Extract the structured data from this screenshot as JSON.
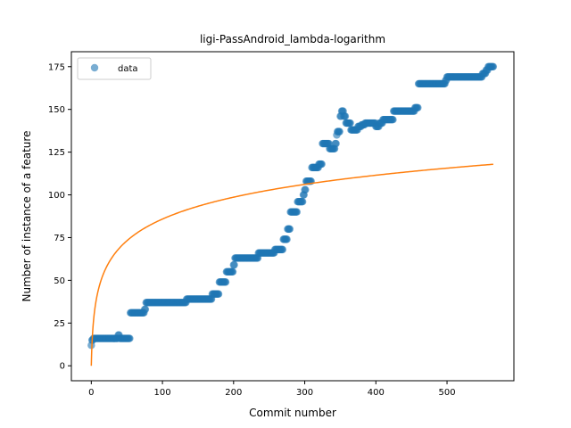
{
  "chart_data": {
    "type": "scatter",
    "title": "ligi-PassAndroid_lambda-logarithm",
    "xlabel": "Commit number",
    "ylabel": "Number of instance of a feature",
    "xlim": [
      -28,
      594
    ],
    "ylim": [
      -8.75,
      183.75
    ],
    "xticks": [
      0,
      100,
      200,
      300,
      400,
      500
    ],
    "yticks": [
      0,
      25,
      50,
      75,
      100,
      125,
      150,
      175
    ],
    "grid": false,
    "legend": {
      "placement": "top-left",
      "entries": [
        "data"
      ]
    },
    "colors": {
      "data": "#1f77b4",
      "fit": "#ff7f0e"
    },
    "series": [
      {
        "name": "data",
        "kind": "scatter",
        "steps": [
          [
            0,
            12
          ],
          [
            1,
            15
          ],
          [
            3,
            16
          ],
          [
            38,
            18
          ],
          [
            40,
            16
          ],
          [
            55,
            31
          ],
          [
            75,
            33
          ],
          [
            77,
            37
          ],
          [
            134,
            39
          ],
          [
            170,
            42
          ],
          [
            180,
            49
          ],
          [
            190,
            55
          ],
          [
            200,
            59
          ],
          [
            202,
            63
          ],
          [
            235,
            66
          ],
          [
            258,
            68
          ],
          [
            270,
            74
          ],
          [
            276,
            80
          ],
          [
            280,
            90
          ],
          [
            290,
            96
          ],
          [
            298,
            100
          ],
          [
            300,
            103
          ],
          [
            302,
            108
          ],
          [
            310,
            116
          ],
          [
            320,
            118
          ],
          [
            325,
            130
          ],
          [
            335,
            127
          ],
          [
            343,
            130
          ],
          [
            345,
            135
          ],
          [
            346,
            137
          ],
          [
            350,
            146
          ],
          [
            352,
            149
          ],
          [
            355,
            146
          ],
          [
            358,
            142
          ],
          [
            365,
            138
          ],
          [
            375,
            140
          ],
          [
            380,
            141
          ],
          [
            385,
            142
          ],
          [
            395,
            142
          ],
          [
            400,
            140
          ],
          [
            405,
            142
          ],
          [
            410,
            144
          ],
          [
            420,
            144
          ],
          [
            425,
            149
          ],
          [
            455,
            151
          ],
          [
            460,
            165
          ],
          [
            495,
            165
          ],
          [
            498,
            167
          ],
          [
            500,
            169
          ],
          [
            550,
            171
          ],
          [
            555,
            173
          ],
          [
            558,
            175
          ],
          [
            565,
            175
          ]
        ]
      },
      {
        "name": "",
        "kind": "fit-line",
        "formula": "y = 18.6 * ln(x + 1)",
        "x_range": [
          0,
          565
        ]
      }
    ]
  }
}
